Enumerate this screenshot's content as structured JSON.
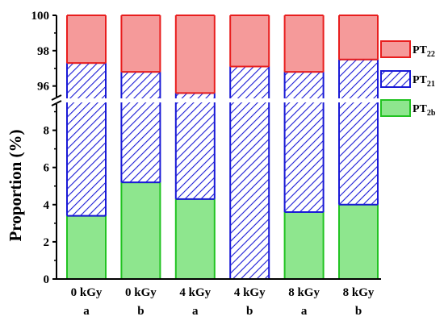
{
  "chart_data": {
    "type": "bar",
    "stacked": true,
    "broken_y_axis": true,
    "ylabel": "Proportion (%)",
    "categories": [
      [
        "0 kGy",
        "a"
      ],
      [
        "0 kGy",
        "b"
      ],
      [
        "4 kGy",
        "a"
      ],
      [
        "4 kGy",
        "b"
      ],
      [
        "8 kGy",
        "a"
      ],
      [
        "8 kGy",
        "b"
      ]
    ],
    "lower_yticks": [
      "0",
      "2",
      "4",
      "6",
      "8"
    ],
    "upper_yticks": [
      "96",
      "98",
      "100"
    ],
    "ylim_lower": [
      0,
      9.5
    ],
    "ylim_upper": [
      95.3,
      100
    ],
    "series": [
      {
        "name": "PT2b",
        "name_main": "PT",
        "name_sub": "2b",
        "pattern": "solid",
        "fill": "#8ee68e",
        "stroke": "#22c322",
        "values": [
          3.4,
          5.2,
          4.3,
          0,
          3.6,
          4.0
        ]
      },
      {
        "name": "PT21",
        "name_main": "PT",
        "name_sub": "21",
        "pattern": "hatch",
        "fill": "#ffffff",
        "stroke": "#1a1ad6",
        "values": [
          93.9,
          91.6,
          91.3,
          97.1,
          93.2,
          93.5
        ]
      },
      {
        "name": "PT22",
        "name_main": "PT",
        "name_sub": "22",
        "pattern": "solid",
        "fill": "#f59a9a",
        "stroke": "#e81e1e",
        "values": [
          2.7,
          3.2,
          4.4,
          2.9,
          3.2,
          2.5
        ]
      }
    ],
    "legend_position": "right"
  }
}
